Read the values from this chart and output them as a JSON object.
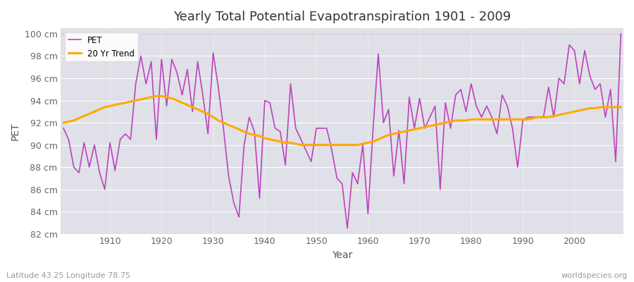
{
  "title": "Yearly Total Potential Evapotranspiration 1901 - 2009",
  "xlabel": "Year",
  "ylabel": "PET",
  "subtitle_left": "Latitude 43.25 Longitude 78.75",
  "subtitle_right": "worldspecies.org",
  "pet_color": "#bb44bb",
  "trend_color": "#ffaa00",
  "fig_bg_color": "#ffffff",
  "plot_bg_color": "#e0e0e8",
  "ylim": [
    82,
    100.5
  ],
  "yticks": [
    82,
    84,
    86,
    88,
    90,
    92,
    94,
    96,
    98,
    100
  ],
  "xticks": [
    1910,
    1920,
    1930,
    1940,
    1950,
    1960,
    1970,
    1980,
    1990,
    2000
  ],
  "years": [
    1901,
    1902,
    1903,
    1904,
    1905,
    1906,
    1907,
    1908,
    1909,
    1910,
    1911,
    1912,
    1913,
    1914,
    1915,
    1916,
    1917,
    1918,
    1919,
    1920,
    1921,
    1922,
    1923,
    1924,
    1925,
    1926,
    1927,
    1928,
    1929,
    1930,
    1931,
    1932,
    1933,
    1934,
    1935,
    1936,
    1937,
    1938,
    1939,
    1940,
    1941,
    1942,
    1943,
    1944,
    1945,
    1946,
    1947,
    1948,
    1949,
    1950,
    1951,
    1952,
    1953,
    1954,
    1955,
    1956,
    1957,
    1958,
    1959,
    1960,
    1961,
    1962,
    1963,
    1964,
    1965,
    1966,
    1967,
    1968,
    1969,
    1970,
    1971,
    1972,
    1973,
    1974,
    1975,
    1976,
    1977,
    1978,
    1979,
    1980,
    1981,
    1982,
    1983,
    1984,
    1985,
    1986,
    1987,
    1988,
    1989,
    1990,
    1991,
    1992,
    1993,
    1994,
    1995,
    1996,
    1997,
    1998,
    1999,
    2000,
    2001,
    2002,
    2003,
    2004,
    2005,
    2006,
    2007,
    2008,
    2009
  ],
  "pet_values": [
    91.5,
    90.5,
    88.0,
    87.5,
    90.2,
    88.0,
    90.0,
    87.5,
    86.0,
    90.2,
    87.7,
    90.5,
    91.0,
    90.5,
    95.5,
    98.0,
    95.5,
    97.5,
    90.5,
    97.7,
    93.5,
    97.7,
    96.5,
    94.5,
    96.8,
    93.0,
    97.5,
    94.5,
    91.0,
    98.3,
    95.2,
    91.5,
    87.2,
    84.8,
    83.5,
    90.0,
    92.5,
    91.2,
    85.2,
    94.0,
    93.8,
    91.5,
    91.2,
    88.2,
    95.5,
    91.5,
    90.5,
    89.5,
    88.5,
    91.5,
    91.5,
    91.5,
    89.5,
    87.0,
    86.5,
    82.5,
    87.5,
    86.5,
    90.0,
    83.8,
    91.5,
    98.2,
    92.0,
    93.2,
    87.2,
    91.3,
    86.5,
    94.3,
    91.5,
    94.2,
    91.5,
    92.5,
    93.5,
    86.0,
    93.8,
    91.5,
    94.5,
    95.0,
    93.0,
    95.5,
    93.5,
    92.5,
    93.5,
    92.5,
    91.0,
    94.5,
    93.5,
    91.5,
    88.0,
    92.2,
    92.5,
    92.5,
    92.5,
    92.5,
    95.2,
    92.5,
    96.0,
    95.5,
    99.0,
    98.5,
    95.5,
    98.5,
    96.2,
    95.0,
    95.5,
    92.5,
    95.0,
    88.5,
    100.0
  ],
  "trend_values": [
    92.0,
    92.1,
    92.2,
    92.4,
    92.6,
    92.8,
    93.0,
    93.2,
    93.4,
    93.5,
    93.6,
    93.7,
    93.8,
    93.9,
    94.0,
    94.1,
    94.2,
    94.3,
    94.4,
    94.4,
    94.3,
    94.2,
    94.0,
    93.8,
    93.6,
    93.4,
    93.2,
    93.0,
    92.8,
    92.5,
    92.2,
    92.0,
    91.8,
    91.6,
    91.4,
    91.2,
    91.0,
    90.9,
    90.8,
    90.6,
    90.5,
    90.4,
    90.3,
    90.2,
    90.2,
    90.1,
    90.0,
    90.0,
    90.0,
    90.0,
    90.0,
    90.0,
    90.0,
    90.0,
    90.0,
    90.0,
    90.0,
    90.0,
    90.1,
    90.2,
    90.3,
    90.5,
    90.7,
    90.9,
    91.0,
    91.1,
    91.2,
    91.3,
    91.4,
    91.5,
    91.6,
    91.7,
    91.8,
    91.9,
    92.0,
    92.1,
    92.2,
    92.2,
    92.2,
    92.3,
    92.3,
    92.3,
    92.3,
    92.3,
    92.3,
    92.3,
    92.3,
    92.3,
    92.3,
    92.3,
    92.3,
    92.4,
    92.5,
    92.5,
    92.5,
    92.6,
    92.7,
    92.8,
    92.9,
    93.0,
    93.1,
    93.2,
    93.3,
    93.3,
    93.4,
    93.4,
    93.4,
    93.4,
    93.4
  ],
  "legend_labels": [
    "PET",
    "20 Yr Trend"
  ]
}
